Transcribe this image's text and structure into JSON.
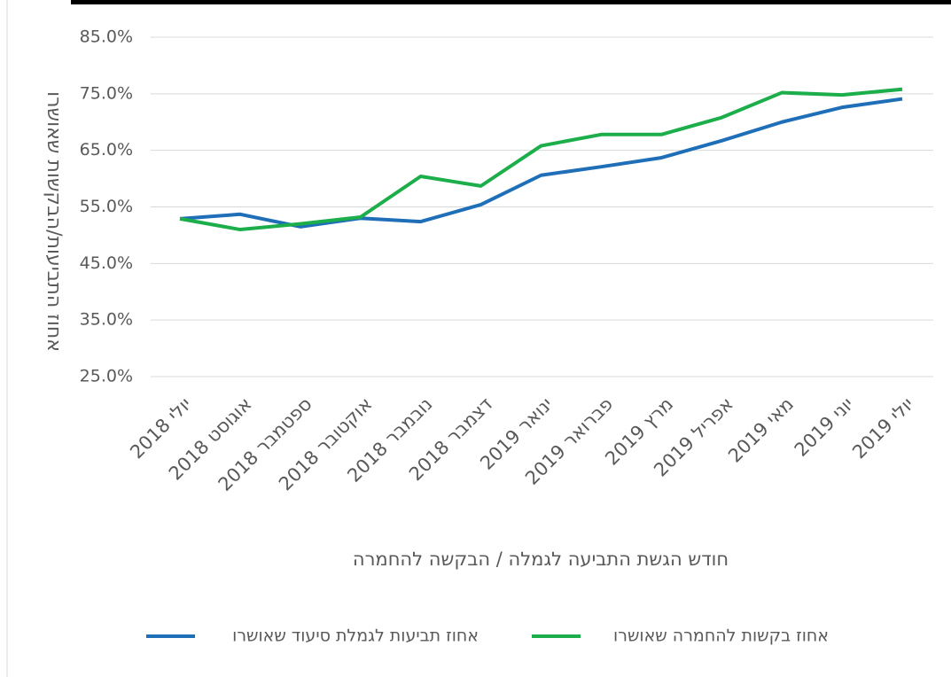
{
  "chart_data": {
    "type": "line",
    "y_label": "אחוז התביעות/הבקשות שאושרו",
    "x_label": "חודש הגשת התביעה לגמלה / הבקשה להחמרה",
    "categories": [
      "יולי 2018",
      "אוגוסט 2018",
      "ספטמבר 2018",
      "אוקטובר 2018",
      "נובמבר 2018",
      "דצמבר 2018",
      "ינואר 2019",
      "פברואר 2019",
      "מרץ 2019",
      "אפריל 2019",
      "מאי 2019",
      "יוני 2019",
      "יולי 2019"
    ],
    "series": [
      {
        "name": "אחוז תביעות לגמלת סיעוד שאושרו",
        "color": "#1f6fb8",
        "values": [
          52.9,
          53.7,
          51.5,
          53.0,
          52.4,
          55.4,
          60.6,
          62.1,
          63.7,
          66.7,
          70.0,
          72.6,
          74.1
        ]
      },
      {
        "name": "אחוז בקשות להחמרה שאושרו",
        "color": "#1cae4a",
        "values": [
          52.9,
          51.0,
          52.0,
          53.2,
          60.4,
          58.7,
          65.8,
          67.8,
          67.8,
          70.8,
          75.2,
          74.8,
          75.8
        ]
      }
    ],
    "ylim": [
      25,
      85
    ],
    "yticks": [
      {
        "value": 25,
        "label": "25.0%"
      },
      {
        "value": 35,
        "label": "35.0%"
      },
      {
        "value": 45,
        "label": "45.0%"
      },
      {
        "value": 55,
        "label": "55.0%"
      },
      {
        "value": 65,
        "label": "65.0%"
      },
      {
        "value": 75,
        "label": "75.0%"
      },
      {
        "value": 85,
        "label": "85.0%"
      }
    ],
    "grid": true
  }
}
